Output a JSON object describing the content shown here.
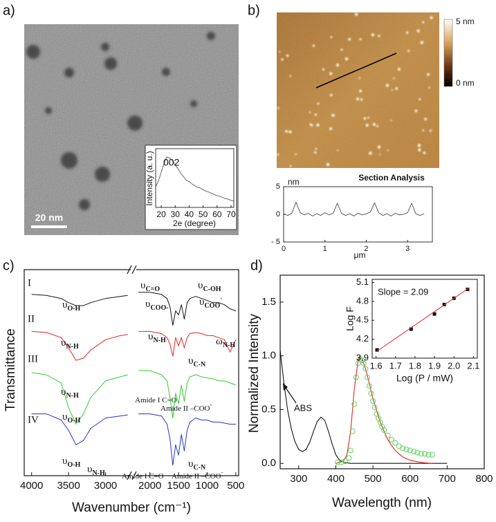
{
  "figure": {
    "panel_labels": [
      "a)",
      "b)",
      "c)",
      "d)"
    ],
    "scale_bar": "20 nm",
    "colorbar_labels": [
      "5 nm",
      "0 nm"
    ]
  },
  "chart_data": [
    {
      "type": "line",
      "annotation": "002",
      "xlabel": "2e (degree)",
      "ylabel": "Intensity (a. u.)",
      "x": [
        16,
        18,
        20,
        22,
        24,
        26,
        28,
        30,
        32,
        34,
        36,
        38,
        40,
        42,
        44,
        46,
        48,
        50,
        52,
        54,
        56,
        58,
        60,
        62,
        64,
        66,
        68,
        70,
        72
      ],
      "series": [
        {
          "color": "#444444",
          "values": [
            3.5,
            4.5,
            6,
            7.5,
            8.6,
            8.4,
            8,
            7.2,
            6.6,
            5.8,
            5.2,
            4.6,
            4.4,
            4,
            3.7,
            3.4,
            3.3,
            3,
            2.8,
            2.6,
            2.4,
            2.2,
            2,
            1.9,
            1.7,
            1.5,
            1.4,
            1.2,
            1.1
          ]
        }
      ],
      "xlim": [
        16,
        72
      ],
      "ylim": [
        0,
        10
      ],
      "xticks": [
        20,
        30,
        40,
        50,
        60,
        70
      ]
    },
    {
      "type": "line",
      "title": "Section Analysis",
      "ylabel": "nm",
      "xlabel": "μm",
      "x": [
        0,
        0.1,
        0.2,
        0.3,
        0.4,
        0.5,
        0.6,
        0.7,
        0.8,
        0.9,
        1.0,
        1.1,
        1.2,
        1.3,
        1.4,
        1.5,
        1.6,
        1.7,
        1.8,
        1.9,
        2.0,
        2.1,
        2.2,
        2.3,
        2.4,
        2.5,
        2.6,
        2.7,
        2.8,
        2.9,
        3.0,
        3.1,
        3.2,
        3.3,
        3.4
      ],
      "series": [
        {
          "color": "#333333",
          "values": [
            0.1,
            -0.2,
            0.2,
            2.2,
            0.3,
            -0.1,
            0.2,
            -0.3,
            0.1,
            -0.2,
            0.3,
            -0.1,
            0.2,
            2.0,
            0.2,
            -0.2,
            0.1,
            -0.3,
            0.2,
            -0.1,
            0.1,
            0.4,
            2.1,
            0.3,
            -0.2,
            0.1,
            -0.3,
            0.2,
            -0.1,
            0.0,
            0.3,
            2.0,
            0.1,
            -0.2,
            0.1
          ]
        }
      ],
      "xlim": [
        0,
        3.6
      ],
      "ylim": [
        -5,
        5
      ],
      "xticks": [
        0,
        1,
        2,
        3
      ],
      "yticks": [
        5,
        0,
        {
          "value": -5,
          "label": "- 5"
        }
      ]
    },
    {
      "type": "line",
      "xlabel": "Wavenumber (cm⁻¹)",
      "ylabel": "Transmittance",
      "x": [
        4000,
        3800,
        3600,
        3500,
        3400,
        3300,
        3200,
        3000,
        2800,
        2700,
        2450,
        2200,
        2000,
        1800,
        1700,
        1650,
        1600,
        1550,
        1500,
        1450,
        1400,
        1350,
        1300,
        1200,
        1100,
        1000,
        900,
        800,
        700,
        600,
        500
      ],
      "axis_break": [
        2650,
        2250
      ],
      "xlim": [
        4100,
        450
      ],
      "ylim": [
        0,
        100
      ],
      "xticks": [
        4000,
        3500,
        3000,
        2000,
        1500,
        1000,
        500
      ],
      "series": [
        {
          "name": "I",
          "color": "#111111",
          "values": [
            88,
            87.5,
            86,
            84,
            82.5,
            82.5,
            84,
            86,
            87,
            87.5,
            null,
            89,
            89,
            88,
            86,
            82,
            73,
            80,
            78,
            83,
            76,
            84,
            86,
            87,
            86,
            85,
            84,
            84,
            83,
            81,
            80
          ]
        },
        {
          "name": "II",
          "color": "#e8231f",
          "values": [
            70,
            69.5,
            67,
            62,
            56,
            57,
            61,
            66,
            68,
            68.5,
            null,
            70,
            70,
            69,
            67,
            64,
            58,
            67,
            63,
            67,
            62,
            67,
            69,
            69.5,
            69,
            68,
            68,
            67,
            66,
            60,
            66
          ]
        },
        {
          "name": "III",
          "color": "#2ecc2e",
          "values": [
            50,
            49,
            45,
            33,
            25,
            30,
            38,
            46,
            48,
            49,
            null,
            51,
            51,
            49,
            46,
            38,
            28,
            40,
            35,
            44,
            36,
            45,
            48,
            49,
            48,
            47.5,
            47,
            46,
            46,
            45,
            44
          ]
        },
        {
          "name": "IV",
          "color": "#2233cc",
          "values": [
            30,
            30,
            27,
            22,
            15,
            17,
            23,
            28,
            29,
            29.5,
            null,
            30,
            30,
            29,
            25,
            18,
            5,
            15,
            10,
            20,
            12,
            22,
            26,
            28,
            27,
            27,
            26,
            26,
            25.5,
            25,
            25
          ]
        }
      ],
      "annotations": [
        {
          "text": "υ",
          "sub": "O-H"
        },
        {
          "text": "υ",
          "sub": "C=O"
        },
        {
          "text": "υ",
          "sub": "C-OH"
        },
        {
          "text": "υ",
          "sub": "COO-"
        },
        {
          "text": "υ",
          "sub": "COO",
          "sup": "-"
        },
        {
          "text": "υ",
          "sub": "N-H"
        },
        {
          "text": "υ",
          "sub": "N-H"
        },
        {
          "text": "ω",
          "sub": "N-H"
        },
        {
          "text": "υ",
          "sub": "N-H"
        },
        {
          "text": "υ",
          "sub": "C-N"
        },
        {
          "text": "Amide I C=O"
        },
        {
          "text": "Amide II –COO",
          "sup": "-"
        },
        {
          "text": "υ",
          "sub": "O-H"
        },
        {
          "text": "υ",
          "sub": "O-H"
        },
        {
          "text": "υ",
          "sub": "N-H"
        },
        {
          "text": "υ",
          "sub": "C-N"
        },
        {
          "text": "Amide I C=O"
        },
        {
          "text": "Amide II –COO",
          "sup": "-"
        }
      ]
    },
    {
      "type": "line",
      "xlabel": "Wavelength (nm)",
      "ylabel": "Normalized Intensity",
      "xlim": [
        250,
        800
      ],
      "ylim": [
        -0.05,
        1.75
      ],
      "xticks": [
        300,
        400,
        500,
        600,
        700,
        800
      ],
      "yticks": [
        {
          "value": 0,
          "label": "0.0"
        },
        0.5,
        {
          "value": 1,
          "label": "1.0"
        },
        1.5
      ],
      "series": [
        {
          "name": "ABS",
          "color": "#111111",
          "x": [
            250,
            260,
            270,
            280,
            290,
            300,
            310,
            320,
            330,
            340,
            350,
            360,
            370,
            380,
            390,
            400,
            410,
            420,
            440,
            500,
            600,
            700
          ],
          "values": [
            1.05,
            0.75,
            0.5,
            0.32,
            0.2,
            0.13,
            0.11,
            0.13,
            0.2,
            0.3,
            0.39,
            0.43,
            0.4,
            0.3,
            0.18,
            0.08,
            0.03,
            0.01,
            0,
            0,
            0,
            0
          ]
        },
        {
          "color": "#e8231f",
          "x": [
            400,
            420,
            430,
            440,
            450,
            460,
            465,
            470,
            480,
            490,
            500,
            520,
            540,
            560,
            580,
            600,
            620,
            640,
            660
          ],
          "values": [
            0,
            0.02,
            0.08,
            0.3,
            0.7,
            0.95,
            1.0,
            0.98,
            0.88,
            0.75,
            0.6,
            0.38,
            0.22,
            0.12,
            0.06,
            0.03,
            0.015,
            0.005,
            0
          ]
        },
        {
          "color": "#5fd35f",
          "marker": "circle",
          "x": [
            405,
            415,
            425,
            435,
            440,
            445,
            450,
            455,
            460,
            465,
            470,
            475,
            480,
            485,
            490,
            495,
            500,
            505,
            510,
            515,
            520,
            525,
            530,
            540,
            550,
            560,
            570,
            580,
            590,
            600,
            610,
            620,
            630,
            640,
            650,
            660
          ],
          "values": [
            0.01,
            0.01,
            0.02,
            0.05,
            0.12,
            0.3,
            0.55,
            0.8,
            0.93,
            0.97,
            0.96,
            0.93,
            0.88,
            0.8,
            0.72,
            0.65,
            0.58,
            0.52,
            0.46,
            0.42,
            0.38,
            0.34,
            0.31,
            0.26,
            0.22,
            0.19,
            0.16,
            0.14,
            0.13,
            0.12,
            0.11,
            0.1,
            0.09,
            0.09,
            0.08,
            0.08
          ]
        }
      ]
    },
    {
      "type": "scatter",
      "xlabel": "Log (P / mW)",
      "ylabel": "Log F",
      "annotation": "Slope = 2.09",
      "xlim": [
        1.58,
        2.12
      ],
      "ylim": [
        3.9,
        5.15
      ],
      "xticks": [
        1.6,
        1.7,
        1.8,
        1.9,
        {
          "value": 2,
          "label": "2.0"
        },
        2.1
      ],
      "yticks": [
        3.9,
        4.2,
        4.5,
        4.8,
        5.1
      ],
      "series": [
        {
          "color": "#111111",
          "marker": "square",
          "x": [
            1.605,
            1.78,
            1.9,
            1.95,
            2.0,
            2.07
          ],
          "values": [
            4.03,
            4.36,
            4.6,
            4.75,
            4.85,
            4.99
          ]
        },
        {
          "color": "#e8231f",
          "x": [
            1.6,
            2.08
          ],
          "values": [
            4.0,
            5.02
          ]
        }
      ]
    }
  ]
}
